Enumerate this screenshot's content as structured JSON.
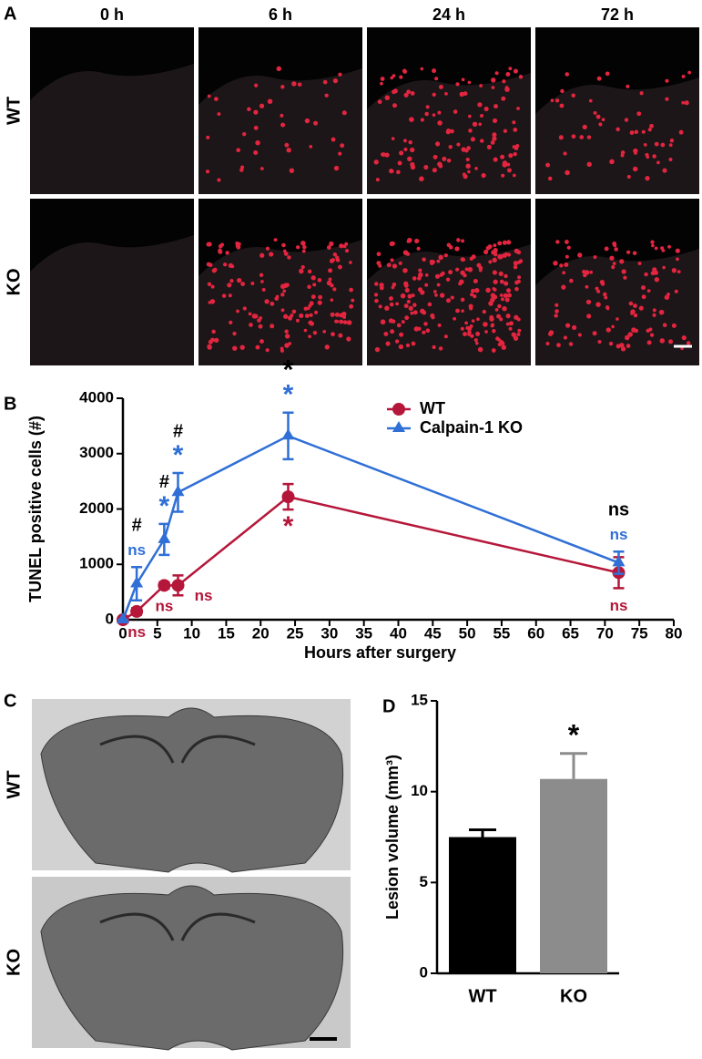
{
  "panel_a": {
    "label": "A",
    "columns": [
      "0 h",
      "6 h",
      "24 h",
      "72 h"
    ],
    "rows": [
      "WT",
      "KO"
    ]
  },
  "panel_c": {
    "label": "C",
    "rows": [
      "WT",
      "KO"
    ]
  },
  "chart_data": [
    {
      "type": "line",
      "label": "B",
      "ylabel": "TUNEL positive cells (#)",
      "xlabel": "Hours after surgery",
      "x": [
        0,
        2,
        6,
        8,
        24,
        72
      ],
      "xlim": [
        0,
        80
      ],
      "xticks": [
        0,
        5,
        10,
        15,
        20,
        25,
        30,
        35,
        40,
        45,
        50,
        55,
        60,
        65,
        70,
        75,
        80
      ],
      "ylim": [
        0,
        4000
      ],
      "yticks": [
        0,
        1000,
        2000,
        3000,
        4000
      ],
      "legend": "top-right",
      "comparison": [
        null,
        "#",
        "#",
        "#",
        "*",
        "ns"
      ],
      "series": [
        {
          "name": "WT",
          "color": "#b5173a",
          "marker": "circle",
          "values": [
            0,
            150,
            620,
            620,
            2220,
            850
          ],
          "errors": [
            0,
            60,
            60,
            180,
            230,
            280
          ],
          "significance": [
            null,
            "ns",
            "ns",
            "ns",
            "*",
            "ns"
          ]
        },
        {
          "name": "Calpain-1 KO",
          "color": "#2f6fd6",
          "marker": "triangle",
          "values": [
            0,
            650,
            1450,
            2300,
            3320,
            1030
          ],
          "errors": [
            0,
            300,
            280,
            350,
            420,
            200
          ],
          "significance": [
            null,
            "ns",
            "*",
            "*",
            "*",
            "ns"
          ]
        }
      ]
    },
    {
      "type": "bar",
      "label": "D",
      "ylabel": "Lesion volume (mm³)",
      "categories": [
        "WT",
        "KO"
      ],
      "values": [
        7.5,
        10.7
      ],
      "errors": [
        0.4,
        1.4
      ],
      "colors": [
        "#000000",
        "#8c8c8c"
      ],
      "significance": [
        null,
        "*"
      ],
      "ylim": [
        0,
        15
      ],
      "yticks": [
        0,
        5,
        10,
        15
      ]
    }
  ]
}
